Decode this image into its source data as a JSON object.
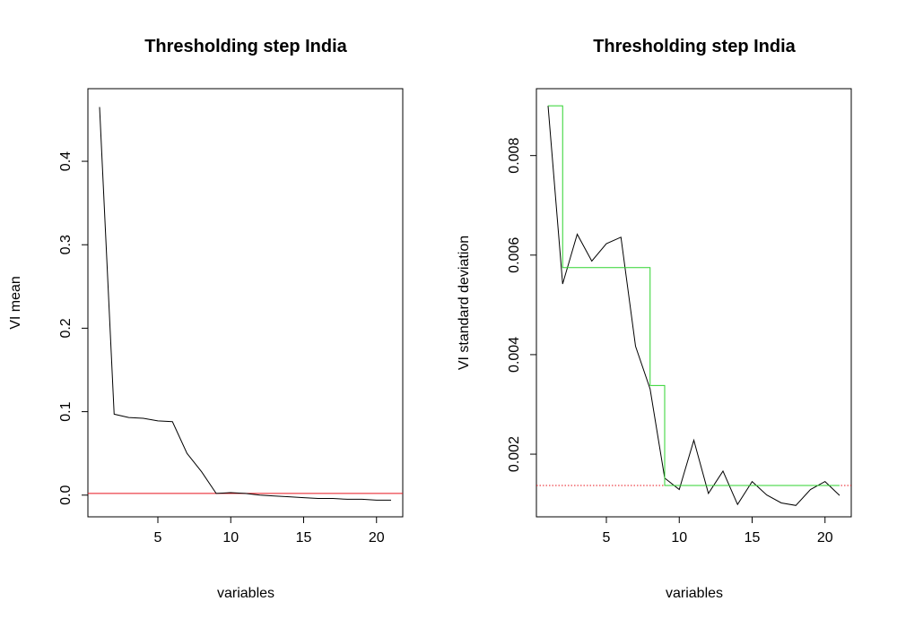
{
  "chart_data": [
    {
      "type": "line",
      "title": "Thresholding step India",
      "xlabel": "variables",
      "ylabel": "VI mean",
      "xlim": [
        0.2,
        21.8
      ],
      "ylim": [
        -0.026,
        0.487
      ],
      "xticks": [
        5,
        10,
        15,
        20
      ],
      "yticks": [
        0.0,
        0.1,
        0.2,
        0.3,
        0.4
      ],
      "ytick_labels": [
        "0.0",
        "0.1",
        "0.2",
        "0.3",
        "0.4"
      ],
      "grid": false,
      "series": [
        {
          "x": [
            1,
            2,
            3,
            4,
            5,
            6,
            7,
            8,
            9,
            10,
            11,
            12,
            13,
            14,
            15,
            16,
            17,
            18,
            19,
            20,
            21
          ],
          "values": [
            0.465,
            0.097,
            0.093,
            0.092,
            0.089,
            0.088,
            0.05,
            0.028,
            0.002,
            0.003,
            0.002,
            0.0,
            -0.001,
            -0.002,
            -0.003,
            -0.004,
            -0.004,
            -0.005,
            -0.005,
            -0.006,
            -0.006
          ],
          "color": "#000000",
          "style": "solid"
        }
      ],
      "hlines": [
        {
          "y": 0.002,
          "color": "#e8141e",
          "style": "solid"
        }
      ]
    },
    {
      "type": "line",
      "title": "Thresholding step India",
      "xlabel": "variables",
      "ylabel": "VI standard deviation",
      "xlim": [
        0.2,
        21.8
      ],
      "ylim": [
        0.000741,
        0.009344
      ],
      "xticks": [
        5,
        10,
        15,
        20
      ],
      "yticks": [
        0.002,
        0.004,
        0.006,
        0.008
      ],
      "ytick_labels": [
        "0.002",
        "0.004",
        "0.006",
        "0.008"
      ],
      "grid": false,
      "series": [
        {
          "x": [
            1,
            2,
            3,
            4,
            5,
            6,
            7,
            8,
            9,
            10,
            11,
            12,
            13,
            14,
            15,
            16,
            17,
            18,
            19,
            20,
            21
          ],
          "values": [
            0.009,
            0.00542,
            0.00642,
            0.00588,
            0.00623,
            0.00636,
            0.00417,
            0.00331,
            0.00152,
            0.00129,
            0.00228,
            0.00121,
            0.00166,
            0.00099,
            0.00145,
            0.00118,
            0.00102,
            0.00097,
            0.00129,
            0.00145,
            0.00117
          ],
          "color": "#000000",
          "style": "solid"
        },
        {
          "step_edges": [
            1,
            2,
            8,
            9,
            21
          ],
          "values": [
            0.009,
            0.00575,
            0.00338,
            0.00137
          ],
          "color": "#2fd32f",
          "style": "step"
        }
      ],
      "hlines": [
        {
          "y": 0.00137,
          "color": "#e8141e",
          "style": "dotted"
        }
      ]
    }
  ]
}
